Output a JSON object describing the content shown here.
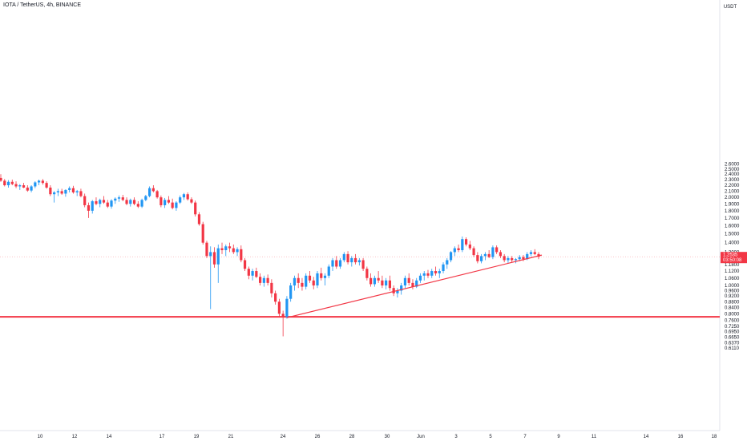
{
  "chart_data": {
    "type": "candlestick",
    "title": "IOTA / TetherUS, 4h, BINANCE",
    "currency": "USDT",
    "y_ticks": [
      "2.6000",
      "2.5000",
      "2.4000",
      "2.3000",
      "2.2000",
      "2.1000",
      "2.0000",
      "1.9000",
      "1.8000",
      "1.7000",
      "1.6000",
      "1.5000",
      "1.4000",
      "1.3000",
      "1.2535",
      "1.1800",
      "1.1200",
      "1.0600",
      "1.0000",
      "0.9600",
      "0.9200",
      "0.8800",
      "0.8400",
      "0.8000",
      "0.7600",
      "0.7250",
      "0.6950",
      "0.6650",
      "0.6370",
      "0.6110"
    ],
    "x_ticks": [
      "10",
      "12",
      "14",
      "17",
      "19",
      "21",
      "24",
      "26",
      "28",
      "30",
      "Jun",
      "3",
      "5",
      "7",
      "9",
      "11",
      "14",
      "16",
      "18"
    ],
    "current_price": {
      "value": "1.2535",
      "countdown": "03:50:08",
      "color": "#f23645"
    },
    "horizontal_line": {
      "price": 0.781,
      "color": "#f23645"
    },
    "trendline": {
      "from": {
        "date": "May 23",
        "price": 0.776
      },
      "to": {
        "date": "Jun 7",
        "price": 1.27
      },
      "color": "#f23645"
    },
    "colors": {
      "up": "#2196f3",
      "down": "#f23645"
    },
    "scale": "log",
    "grid": false,
    "candles": [
      {
        "o": 2.33,
        "h": 2.4,
        "l": 2.26,
        "c": 2.28
      },
      {
        "o": 2.28,
        "h": 2.31,
        "l": 2.18,
        "c": 2.2
      },
      {
        "o": 2.2,
        "h": 2.29,
        "l": 2.16,
        "c": 2.26
      },
      {
        "o": 2.26,
        "h": 2.3,
        "l": 2.2,
        "c": 2.22
      },
      {
        "o": 2.22,
        "h": 2.27,
        "l": 2.15,
        "c": 2.18
      },
      {
        "o": 2.18,
        "h": 2.22,
        "l": 2.12,
        "c": 2.2
      },
      {
        "o": 2.2,
        "h": 2.24,
        "l": 2.15,
        "c": 2.16
      },
      {
        "o": 2.16,
        "h": 2.2,
        "l": 2.09,
        "c": 2.11
      },
      {
        "o": 2.11,
        "h": 2.2,
        "l": 2.08,
        "c": 2.18
      },
      {
        "o": 2.18,
        "h": 2.27,
        "l": 2.15,
        "c": 2.25
      },
      {
        "o": 2.25,
        "h": 2.3,
        "l": 2.2,
        "c": 2.28
      },
      {
        "o": 2.28,
        "h": 2.31,
        "l": 2.21,
        "c": 2.24
      },
      {
        "o": 2.24,
        "h": 2.27,
        "l": 2.14,
        "c": 2.16
      },
      {
        "o": 2.16,
        "h": 2.2,
        "l": 2.02,
        "c": 2.05
      },
      {
        "o": 2.05,
        "h": 2.1,
        "l": 1.92,
        "c": 2.08
      },
      {
        "o": 2.08,
        "h": 2.14,
        "l": 2.02,
        "c": 2.1
      },
      {
        "o": 2.1,
        "h": 2.14,
        "l": 2.04,
        "c": 2.06
      },
      {
        "o": 2.06,
        "h": 2.13,
        "l": 2.01,
        "c": 2.12
      },
      {
        "o": 2.12,
        "h": 2.18,
        "l": 2.08,
        "c": 2.15
      },
      {
        "o": 2.15,
        "h": 2.19,
        "l": 2.06,
        "c": 2.08
      },
      {
        "o": 2.08,
        "h": 2.12,
        "l": 2.02,
        "c": 2.1
      },
      {
        "o": 2.1,
        "h": 2.14,
        "l": 2.0,
        "c": 2.02
      },
      {
        "o": 2.02,
        "h": 2.06,
        "l": 1.85,
        "c": 1.88
      },
      {
        "o": 1.88,
        "h": 1.92,
        "l": 1.7,
        "c": 1.8
      },
      {
        "o": 1.8,
        "h": 1.96,
        "l": 1.76,
        "c": 1.94
      },
      {
        "o": 1.94,
        "h": 2.0,
        "l": 1.88,
        "c": 1.9
      },
      {
        "o": 1.9,
        "h": 1.98,
        "l": 1.85,
        "c": 1.96
      },
      {
        "o": 1.96,
        "h": 2.02,
        "l": 1.9,
        "c": 1.92
      },
      {
        "o": 1.92,
        "h": 1.96,
        "l": 1.84,
        "c": 1.86
      },
      {
        "o": 1.86,
        "h": 1.97,
        "l": 1.83,
        "c": 1.95
      },
      {
        "o": 1.95,
        "h": 2.0,
        "l": 1.9,
        "c": 1.98
      },
      {
        "o": 1.98,
        "h": 2.03,
        "l": 1.93,
        "c": 2.0
      },
      {
        "o": 2.0,
        "h": 2.04,
        "l": 1.94,
        "c": 1.96
      },
      {
        "o": 1.96,
        "h": 2.0,
        "l": 1.88,
        "c": 1.9
      },
      {
        "o": 1.9,
        "h": 1.98,
        "l": 1.86,
        "c": 1.96
      },
      {
        "o": 1.96,
        "h": 2.0,
        "l": 1.88,
        "c": 1.9
      },
      {
        "o": 1.9,
        "h": 1.94,
        "l": 1.84,
        "c": 1.86
      },
      {
        "o": 1.86,
        "h": 1.98,
        "l": 1.84,
        "c": 1.96
      },
      {
        "o": 1.96,
        "h": 2.04,
        "l": 1.94,
        "c": 2.02
      },
      {
        "o": 2.02,
        "h": 2.18,
        "l": 2.0,
        "c": 2.15
      },
      {
        "o": 2.15,
        "h": 2.2,
        "l": 2.08,
        "c": 2.1
      },
      {
        "o": 2.1,
        "h": 2.12,
        "l": 1.98,
        "c": 2.0
      },
      {
        "o": 2.0,
        "h": 2.03,
        "l": 1.85,
        "c": 1.88
      },
      {
        "o": 1.88,
        "h": 1.99,
        "l": 1.84,
        "c": 1.96
      },
      {
        "o": 1.96,
        "h": 2.02,
        "l": 1.9,
        "c": 1.92
      },
      {
        "o": 1.92,
        "h": 1.98,
        "l": 1.82,
        "c": 1.84
      },
      {
        "o": 1.84,
        "h": 1.94,
        "l": 1.8,
        "c": 1.92
      },
      {
        "o": 1.92,
        "h": 2.03,
        "l": 1.9,
        "c": 2.0
      },
      {
        "o": 2.0,
        "h": 2.07,
        "l": 1.96,
        "c": 2.05
      },
      {
        "o": 2.05,
        "h": 2.08,
        "l": 1.95,
        "c": 1.97
      },
      {
        "o": 1.97,
        "h": 2.0,
        "l": 1.9,
        "c": 1.92
      },
      {
        "o": 1.92,
        "h": 1.95,
        "l": 1.72,
        "c": 1.75
      },
      {
        "o": 1.75,
        "h": 1.78,
        "l": 1.6,
        "c": 1.62
      },
      {
        "o": 1.62,
        "h": 1.65,
        "l": 1.38,
        "c": 1.4
      },
      {
        "o": 1.4,
        "h": 1.42,
        "l": 1.24,
        "c": 1.26
      },
      {
        "o": 1.26,
        "h": 1.36,
        "l": 0.83,
        "c": 1.3
      },
      {
        "o": 1.3,
        "h": 1.35,
        "l": 1.15,
        "c": 1.18
      },
      {
        "o": 1.18,
        "h": 1.38,
        "l": 1.02,
        "c": 1.34
      },
      {
        "o": 1.34,
        "h": 1.4,
        "l": 1.28,
        "c": 1.32
      },
      {
        "o": 1.32,
        "h": 1.38,
        "l": 1.26,
        "c": 1.36
      },
      {
        "o": 1.36,
        "h": 1.4,
        "l": 1.3,
        "c": 1.34
      },
      {
        "o": 1.34,
        "h": 1.38,
        "l": 1.28,
        "c": 1.3
      },
      {
        "o": 1.3,
        "h": 1.35,
        "l": 1.26,
        "c": 1.33
      },
      {
        "o": 1.33,
        "h": 1.37,
        "l": 1.2,
        "c": 1.22
      },
      {
        "o": 1.22,
        "h": 1.24,
        "l": 1.12,
        "c": 1.14
      },
      {
        "o": 1.14,
        "h": 1.16,
        "l": 1.05,
        "c": 1.08
      },
      {
        "o": 1.08,
        "h": 1.14,
        "l": 1.04,
        "c": 1.12
      },
      {
        "o": 1.12,
        "h": 1.15,
        "l": 1.06,
        "c": 1.07
      },
      {
        "o": 1.07,
        "h": 1.1,
        "l": 1.0,
        "c": 1.02
      },
      {
        "o": 1.02,
        "h": 1.08,
        "l": 0.99,
        "c": 1.06
      },
      {
        "o": 1.06,
        "h": 1.09,
        "l": 1.0,
        "c": 1.02
      },
      {
        "o": 1.02,
        "h": 1.05,
        "l": 0.91,
        "c": 0.94
      },
      {
        "o": 0.94,
        "h": 0.96,
        "l": 0.86,
        "c": 0.88
      },
      {
        "o": 0.88,
        "h": 0.9,
        "l": 0.78,
        "c": 0.8
      },
      {
        "o": 0.8,
        "h": 0.82,
        "l": 0.67,
        "c": 0.78
      },
      {
        "o": 0.78,
        "h": 0.92,
        "l": 0.77,
        "c": 0.9
      },
      {
        "o": 0.9,
        "h": 1.02,
        "l": 0.88,
        "c": 1.0
      },
      {
        "o": 1.0,
        "h": 1.08,
        "l": 0.96,
        "c": 1.06
      },
      {
        "o": 1.06,
        "h": 1.1,
        "l": 0.98,
        "c": 1.02
      },
      {
        "o": 1.02,
        "h": 1.06,
        "l": 0.96,
        "c": 0.99
      },
      {
        "o": 0.99,
        "h": 1.1,
        "l": 0.97,
        "c": 1.08
      },
      {
        "o": 1.08,
        "h": 1.12,
        "l": 1.02,
        "c": 1.04
      },
      {
        "o": 1.04,
        "h": 1.07,
        "l": 0.97,
        "c": 1.0
      },
      {
        "o": 1.0,
        "h": 1.12,
        "l": 0.98,
        "c": 1.1
      },
      {
        "o": 1.1,
        "h": 1.15,
        "l": 1.04,
        "c": 1.06
      },
      {
        "o": 1.06,
        "h": 1.1,
        "l": 1.0,
        "c": 1.08
      },
      {
        "o": 1.08,
        "h": 1.18,
        "l": 1.06,
        "c": 1.16
      },
      {
        "o": 1.16,
        "h": 1.24,
        "l": 1.12,
        "c": 1.22
      },
      {
        "o": 1.22,
        "h": 1.26,
        "l": 1.14,
        "c": 1.16
      },
      {
        "o": 1.16,
        "h": 1.24,
        "l": 1.14,
        "c": 1.22
      },
      {
        "o": 1.22,
        "h": 1.3,
        "l": 1.2,
        "c": 1.28
      },
      {
        "o": 1.28,
        "h": 1.31,
        "l": 1.18,
        "c": 1.2
      },
      {
        "o": 1.2,
        "h": 1.26,
        "l": 1.16,
        "c": 1.24
      },
      {
        "o": 1.24,
        "h": 1.28,
        "l": 1.18,
        "c": 1.2
      },
      {
        "o": 1.2,
        "h": 1.24,
        "l": 1.17,
        "c": 1.22
      },
      {
        "o": 1.22,
        "h": 1.24,
        "l": 1.12,
        "c": 1.14
      },
      {
        "o": 1.14,
        "h": 1.16,
        "l": 1.04,
        "c": 1.06
      },
      {
        "o": 1.06,
        "h": 1.1,
        "l": 0.99,
        "c": 1.01
      },
      {
        "o": 1.01,
        "h": 1.08,
        "l": 0.99,
        "c": 1.06
      },
      {
        "o": 1.06,
        "h": 1.12,
        "l": 1.02,
        "c": 1.04
      },
      {
        "o": 1.04,
        "h": 1.08,
        "l": 0.98,
        "c": 1.0
      },
      {
        "o": 1.0,
        "h": 1.06,
        "l": 0.97,
        "c": 1.04
      },
      {
        "o": 1.04,
        "h": 1.08,
        "l": 0.96,
        "c": 0.98
      },
      {
        "o": 0.98,
        "h": 1.0,
        "l": 0.92,
        "c": 0.94
      },
      {
        "o": 0.94,
        "h": 0.98,
        "l": 0.91,
        "c": 0.96
      },
      {
        "o": 0.96,
        "h": 1.02,
        "l": 0.93,
        "c": 1.0
      },
      {
        "o": 1.0,
        "h": 1.08,
        "l": 0.98,
        "c": 1.06
      },
      {
        "o": 1.06,
        "h": 1.1,
        "l": 1.0,
        "c": 1.02
      },
      {
        "o": 1.02,
        "h": 1.05,
        "l": 0.97,
        "c": 0.99
      },
      {
        "o": 0.99,
        "h": 1.06,
        "l": 0.98,
        "c": 1.04
      },
      {
        "o": 1.04,
        "h": 1.1,
        "l": 1.02,
        "c": 1.08
      },
      {
        "o": 1.08,
        "h": 1.12,
        "l": 1.04,
        "c": 1.1
      },
      {
        "o": 1.1,
        "h": 1.13,
        "l": 1.06,
        "c": 1.08
      },
      {
        "o": 1.08,
        "h": 1.14,
        "l": 1.06,
        "c": 1.12
      },
      {
        "o": 1.12,
        "h": 1.16,
        "l": 1.08,
        "c": 1.1
      },
      {
        "o": 1.1,
        "h": 1.14,
        "l": 1.06,
        "c": 1.12
      },
      {
        "o": 1.12,
        "h": 1.2,
        "l": 1.1,
        "c": 1.18
      },
      {
        "o": 1.18,
        "h": 1.24,
        "l": 1.14,
        "c": 1.22
      },
      {
        "o": 1.22,
        "h": 1.31,
        "l": 1.2,
        "c": 1.3
      },
      {
        "o": 1.3,
        "h": 1.36,
        "l": 1.26,
        "c": 1.34
      },
      {
        "o": 1.34,
        "h": 1.38,
        "l": 1.3,
        "c": 1.32
      },
      {
        "o": 1.32,
        "h": 1.47,
        "l": 1.3,
        "c": 1.44
      },
      {
        "o": 1.44,
        "h": 1.46,
        "l": 1.36,
        "c": 1.38
      },
      {
        "o": 1.38,
        "h": 1.42,
        "l": 1.32,
        "c": 1.34
      },
      {
        "o": 1.34,
        "h": 1.36,
        "l": 1.25,
        "c": 1.27
      },
      {
        "o": 1.27,
        "h": 1.3,
        "l": 1.19,
        "c": 1.21
      },
      {
        "o": 1.21,
        "h": 1.28,
        "l": 1.19,
        "c": 1.26
      },
      {
        "o": 1.26,
        "h": 1.3,
        "l": 1.22,
        "c": 1.28
      },
      {
        "o": 1.28,
        "h": 1.32,
        "l": 1.24,
        "c": 1.25
      },
      {
        "o": 1.25,
        "h": 1.37,
        "l": 1.23,
        "c": 1.35
      },
      {
        "o": 1.35,
        "h": 1.37,
        "l": 1.28,
        "c": 1.3
      },
      {
        "o": 1.3,
        "h": 1.32,
        "l": 1.24,
        "c": 1.26
      },
      {
        "o": 1.26,
        "h": 1.28,
        "l": 1.2,
        "c": 1.22
      },
      {
        "o": 1.22,
        "h": 1.26,
        "l": 1.19,
        "c": 1.24
      },
      {
        "o": 1.24,
        "h": 1.26,
        "l": 1.2,
        "c": 1.22
      },
      {
        "o": 1.22,
        "h": 1.24,
        "l": 1.19,
        "c": 1.23
      },
      {
        "o": 1.23,
        "h": 1.27,
        "l": 1.21,
        "c": 1.25
      },
      {
        "o": 1.25,
        "h": 1.27,
        "l": 1.21,
        "c": 1.23
      },
      {
        "o": 1.23,
        "h": 1.3,
        "l": 1.22,
        "c": 1.28
      },
      {
        "o": 1.28,
        "h": 1.32,
        "l": 1.26,
        "c": 1.3
      },
      {
        "o": 1.3,
        "h": 1.33,
        "l": 1.27,
        "c": 1.28
      },
      {
        "o": 1.28,
        "h": 1.3,
        "l": 1.23,
        "c": 1.2535
      }
    ]
  }
}
